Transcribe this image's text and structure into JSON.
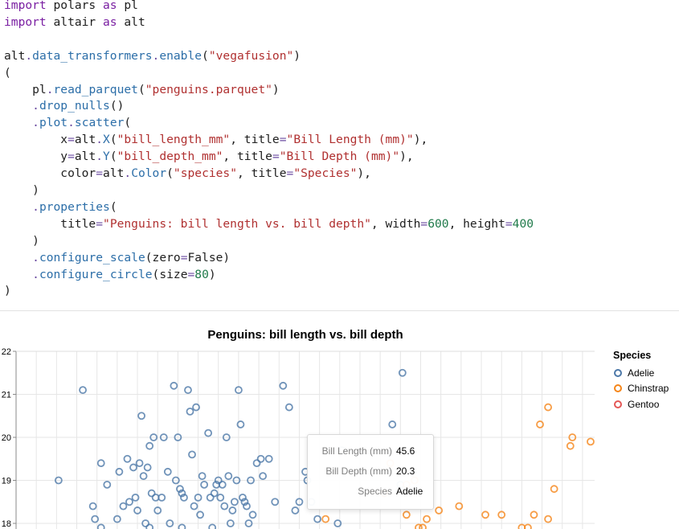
{
  "code_cell": {
    "lines": [
      [
        [
          "kw",
          "import"
        ],
        [
          "t",
          " polars "
        ],
        [
          "kw",
          "as"
        ],
        [
          "t",
          " pl"
        ]
      ],
      [
        [
          "kw",
          "import"
        ],
        [
          "t",
          " altair "
        ],
        [
          "kw",
          "as"
        ],
        [
          "t",
          " alt"
        ]
      ],
      [],
      [
        [
          "t",
          "alt"
        ],
        [
          "op",
          "."
        ],
        [
          "fn",
          "data_transformers"
        ],
        [
          "op",
          "."
        ],
        [
          "fn",
          "enable"
        ],
        [
          "t",
          "("
        ],
        [
          "str",
          "\"vegafusion\""
        ],
        [
          "t",
          ")"
        ]
      ],
      [
        [
          "t",
          "("
        ]
      ],
      [
        [
          "t",
          "    pl"
        ],
        [
          "op",
          "."
        ],
        [
          "fn",
          "read_parquet"
        ],
        [
          "t",
          "("
        ],
        [
          "str",
          "\"penguins.parquet\""
        ],
        [
          "t",
          ")"
        ]
      ],
      [
        [
          "t",
          "    "
        ],
        [
          "op",
          "."
        ],
        [
          "fn",
          "drop_nulls"
        ],
        [
          "t",
          "()"
        ]
      ],
      [
        [
          "t",
          "    "
        ],
        [
          "op",
          "."
        ],
        [
          "fn",
          "plot"
        ],
        [
          "op",
          "."
        ],
        [
          "fn",
          "scatter"
        ],
        [
          "t",
          "("
        ]
      ],
      [
        [
          "t",
          "        x"
        ],
        [
          "op",
          "="
        ],
        [
          "t",
          "alt"
        ],
        [
          "op",
          "."
        ],
        [
          "fn",
          "X"
        ],
        [
          "t",
          "("
        ],
        [
          "str",
          "\"bill_length_mm\""
        ],
        [
          "t",
          ", title"
        ],
        [
          "op",
          "="
        ],
        [
          "str",
          "\"Bill Length (mm)\""
        ],
        [
          "t",
          "),"
        ]
      ],
      [
        [
          "t",
          "        y"
        ],
        [
          "op",
          "="
        ],
        [
          "t",
          "alt"
        ],
        [
          "op",
          "."
        ],
        [
          "fn",
          "Y"
        ],
        [
          "t",
          "("
        ],
        [
          "str",
          "\"bill_depth_mm\""
        ],
        [
          "t",
          ", title"
        ],
        [
          "op",
          "="
        ],
        [
          "str",
          "\"Bill Depth (mm)\""
        ],
        [
          "t",
          "),"
        ]
      ],
      [
        [
          "t",
          "        color"
        ],
        [
          "op",
          "="
        ],
        [
          "t",
          "alt"
        ],
        [
          "op",
          "."
        ],
        [
          "fn",
          "Color"
        ],
        [
          "t",
          "("
        ],
        [
          "str",
          "\"species\""
        ],
        [
          "t",
          ", title"
        ],
        [
          "op",
          "="
        ],
        [
          "str",
          "\"Species\""
        ],
        [
          "t",
          "),"
        ]
      ],
      [
        [
          "t",
          "    )"
        ]
      ],
      [
        [
          "t",
          "    "
        ],
        [
          "op",
          "."
        ],
        [
          "fn",
          "properties"
        ],
        [
          "t",
          "("
        ]
      ],
      [
        [
          "t",
          "        title"
        ],
        [
          "op",
          "="
        ],
        [
          "str",
          "\"Penguins: bill length vs. bill depth\""
        ],
        [
          "t",
          ", width"
        ],
        [
          "op",
          "="
        ],
        [
          "num",
          "600"
        ],
        [
          "t",
          ", height"
        ],
        [
          "op",
          "="
        ],
        [
          "num",
          "400"
        ]
      ],
      [
        [
          "t",
          "    )"
        ]
      ],
      [
        [
          "t",
          "    "
        ],
        [
          "op",
          "."
        ],
        [
          "fn",
          "configure_scale"
        ],
        [
          "t",
          "(zero"
        ],
        [
          "op",
          "="
        ],
        [
          "t",
          "False)"
        ]
      ],
      [
        [
          "t",
          "    "
        ],
        [
          "op",
          "."
        ],
        [
          "fn",
          "configure_circle"
        ],
        [
          "t",
          "(size"
        ],
        [
          "op",
          "="
        ],
        [
          "num",
          "80"
        ],
        [
          "t",
          ")"
        ]
      ],
      [
        [
          "t",
          ")"
        ]
      ]
    ]
  },
  "chart_data": {
    "type": "scatter",
    "title": "Penguins: bill length vs. bill depth",
    "xlabel": "Bill Length (mm)",
    "ylabel": "Bill Depth (mm)",
    "ylim_visible": [
      17.8,
      22.1
    ],
    "y_ticks": [
      "22",
      "21",
      "20",
      "19",
      "18"
    ],
    "grid": true,
    "legend_title": "Species",
    "legend_placement": "top-right",
    "colors": {
      "Adelie": "#4c78a8",
      "Chinstrap": "#f58518",
      "Gentoo": "#e45756"
    },
    "legend": [
      "Adelie",
      "Chinstrap",
      "Gentoo"
    ],
    "series": [
      {
        "name": "Adelie",
        "points": [
          [
            34.1,
            19.0
          ],
          [
            35.3,
            21.1
          ],
          [
            36.2,
            19.4
          ],
          [
            36.5,
            18.9
          ],
          [
            35.8,
            18.4
          ],
          [
            35.9,
            18.1
          ],
          [
            36.2,
            17.9
          ],
          [
            37.0,
            18.1
          ],
          [
            37.1,
            19.2
          ],
          [
            37.3,
            18.4
          ],
          [
            37.5,
            19.5
          ],
          [
            37.6,
            18.5
          ],
          [
            37.8,
            19.3
          ],
          [
            37.9,
            18.6
          ],
          [
            38.0,
            18.3
          ],
          [
            38.1,
            19.4
          ],
          [
            38.2,
            20.5
          ],
          [
            38.3,
            19.1
          ],
          [
            38.4,
            18.0
          ],
          [
            38.5,
            19.3
          ],
          [
            38.6,
            17.9
          ],
          [
            38.7,
            18.7
          ],
          [
            38.8,
            20.0
          ],
          [
            38.6,
            19.8
          ],
          [
            38.9,
            18.6
          ],
          [
            39.0,
            18.3
          ],
          [
            39.2,
            18.6
          ],
          [
            39.3,
            20.0
          ],
          [
            39.5,
            19.2
          ],
          [
            39.6,
            18.0
          ],
          [
            39.8,
            21.2
          ],
          [
            39.9,
            19.0
          ],
          [
            40.0,
            20.0
          ],
          [
            40.1,
            18.8
          ],
          [
            40.2,
            18.7
          ],
          [
            40.3,
            18.6
          ],
          [
            40.2,
            17.9
          ],
          [
            40.5,
            21.1
          ],
          [
            40.6,
            20.6
          ],
          [
            40.7,
            19.6
          ],
          [
            40.8,
            18.4
          ],
          [
            40.9,
            20.7
          ],
          [
            41.0,
            18.6
          ],
          [
            41.1,
            18.2
          ],
          [
            41.2,
            19.1
          ],
          [
            41.3,
            18.9
          ],
          [
            41.5,
            20.1
          ],
          [
            41.6,
            18.6
          ],
          [
            41.7,
            17.9
          ],
          [
            41.8,
            18.7
          ],
          [
            41.9,
            18.9
          ],
          [
            42.0,
            19.0
          ],
          [
            42.1,
            18.6
          ],
          [
            42.2,
            18.9
          ],
          [
            42.3,
            18.4
          ],
          [
            42.4,
            20.0
          ],
          [
            42.5,
            19.1
          ],
          [
            42.6,
            18.0
          ],
          [
            42.7,
            18.3
          ],
          [
            42.8,
            18.5
          ],
          [
            42.9,
            19.0
          ],
          [
            43.0,
            21.1
          ],
          [
            43.1,
            20.3
          ],
          [
            43.2,
            18.6
          ],
          [
            43.3,
            18.5
          ],
          [
            43.4,
            18.4
          ],
          [
            43.5,
            18.0
          ],
          [
            43.6,
            19.0
          ],
          [
            43.7,
            18.2
          ],
          [
            43.9,
            19.4
          ],
          [
            44.1,
            19.5
          ],
          [
            44.2,
            19.1
          ],
          [
            44.5,
            19.5
          ],
          [
            44.8,
            18.5
          ],
          [
            45.2,
            21.2
          ],
          [
            45.5,
            20.7
          ],
          [
            45.8,
            18.3
          ],
          [
            46.0,
            18.5
          ],
          [
            46.3,
            19.2
          ],
          [
            46.4,
            19.0
          ],
          [
            46.6,
            18.5
          ],
          [
            46.9,
            18.1
          ],
          [
            47.9,
            18.0
          ],
          [
            48.1,
            19.7
          ],
          [
            50.6,
            20.3
          ],
          [
            51.1,
            21.5
          ],
          [
            51.0,
            18.9
          ]
        ]
      },
      {
        "name": "Chinstrap",
        "points": [
          [
            47.3,
            18.1
          ],
          [
            50.2,
            18.7
          ],
          [
            50.5,
            19.4
          ],
          [
            51.3,
            18.9
          ],
          [
            51.3,
            18.2
          ],
          [
            51.7,
            19.0
          ],
          [
            51.9,
            17.9
          ],
          [
            52.1,
            17.9
          ],
          [
            52.3,
            18.1
          ],
          [
            52.9,
            18.3
          ],
          [
            53.9,
            18.4
          ],
          [
            55.2,
            18.2
          ],
          [
            56.0,
            18.2
          ],
          [
            57.0,
            17.9
          ],
          [
            57.3,
            17.9
          ],
          [
            57.6,
            18.2
          ],
          [
            57.9,
            20.3
          ],
          [
            58.3,
            18.1
          ],
          [
            58.3,
            20.7
          ],
          [
            58.6,
            18.8
          ],
          [
            59.5,
            20.0
          ],
          [
            59.4,
            19.8
          ],
          [
            60.4,
            19.9
          ],
          [
            61.5,
            20.8
          ],
          [
            63.5,
            19.8
          ]
        ]
      },
      {
        "name": "Gentoo",
        "points": []
      }
    ],
    "tooltip": {
      "rows": [
        {
          "key": "Bill Length (mm)",
          "value": "45.6"
        },
        {
          "key": "Bill Depth (mm)",
          "value": "20.3"
        },
        {
          "key": "Species",
          "value": "Adelie"
        }
      ]
    }
  }
}
